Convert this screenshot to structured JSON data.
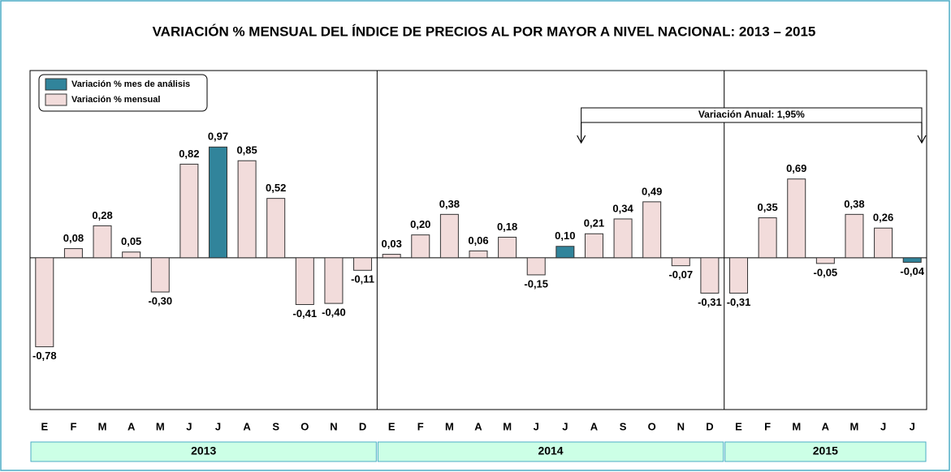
{
  "chart_data": {
    "type": "bar",
    "title": "VARIACIÓN % MENSUAL DEL ÍNDICE DE  PRECIOS AL POR MAYOR A NIVEL NACIONAL: 2013 – 2015",
    "legend": [
      {
        "name": "Variación % mes de análisis",
        "color": "#31849b"
      },
      {
        "name": "Variación % mensual",
        "color": "#f2dcdb"
      }
    ],
    "annotation": "Variación Anual: 1,95%",
    "ylim": [
      -1.33,
      1.64
    ],
    "groups": [
      {
        "name": "2013",
        "categories": [
          "E",
          "F",
          "M",
          "A",
          "M",
          "J",
          "J",
          "A",
          "S",
          "O",
          "N",
          "D"
        ],
        "values": [
          -0.78,
          0.08,
          0.28,
          0.05,
          -0.3,
          0.82,
          0.97,
          0.85,
          0.52,
          -0.41,
          -0.4,
          -0.11
        ],
        "value_labels": [
          "-0,78",
          "0,08",
          "0,28",
          "0,05",
          "-0,30",
          "0,82",
          "0,97",
          "0,85",
          "0,52",
          "-0,41",
          "-0,40",
          "-0,11"
        ],
        "colors": [
          "#f2dcdb",
          "#f2dcdb",
          "#f2dcdb",
          "#f2dcdb",
          "#f2dcdb",
          "#f2dcdb",
          "#31849b",
          "#f2dcdb",
          "#f2dcdb",
          "#f2dcdb",
          "#f2dcdb",
          "#f2dcdb"
        ]
      },
      {
        "name": "2014",
        "categories": [
          "E",
          "F",
          "M",
          "A",
          "M",
          "J",
          "J",
          "A",
          "S",
          "O",
          "N",
          "D"
        ],
        "values": [
          0.03,
          0.2,
          0.38,
          0.06,
          0.18,
          -0.15,
          0.1,
          0.21,
          0.34,
          0.49,
          -0.07,
          -0.31
        ],
        "value_labels": [
          "0,03",
          "0,20",
          "0,38",
          "0,06",
          "0,18",
          "-0,15",
          "0,10",
          "0,21",
          "0,34",
          "0,49",
          "-0,07",
          "-0,31"
        ],
        "colors": [
          "#f2dcdb",
          "#f2dcdb",
          "#f2dcdb",
          "#f2dcdb",
          "#f2dcdb",
          "#f2dcdb",
          "#31849b",
          "#f2dcdb",
          "#f2dcdb",
          "#f2dcdb",
          "#f2dcdb",
          "#f2dcdb"
        ]
      },
      {
        "name": "2015",
        "categories": [
          "E",
          "F",
          "M",
          "A",
          "M",
          "J",
          "J"
        ],
        "values": [
          -0.31,
          0.35,
          0.69,
          -0.05,
          0.38,
          0.26,
          -0.04
        ],
        "value_labels": [
          "-0,31",
          "0,35",
          "0,69",
          "-0,05",
          "0,38",
          "0,26",
          "-0,04"
        ],
        "colors": [
          "#f2dcdb",
          "#f2dcdb",
          "#f2dcdb",
          "#f2dcdb",
          "#f2dcdb",
          "#f2dcdb",
          "#31849b"
        ]
      }
    ]
  }
}
